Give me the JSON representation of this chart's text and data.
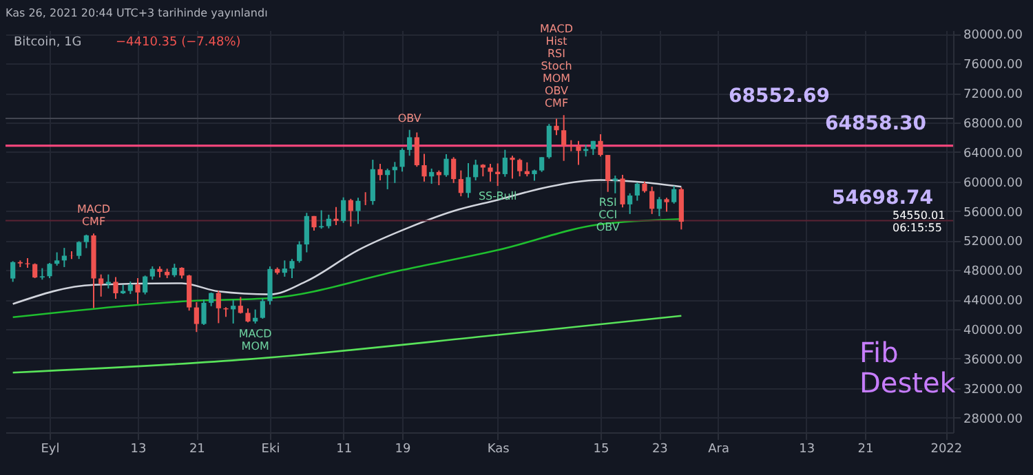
{
  "chart_data": {
    "type": "candlestick",
    "title": "Bitcoin, 1G",
    "subtitle": "−4410.35 (−7.48%)",
    "x": [
      "2021-08-27",
      "2021-08-28",
      "2021-08-29",
      "2021-08-30",
      "2021-08-31",
      "2021-09-01",
      "2021-09-02",
      "2021-09-03",
      "2021-09-04",
      "2021-09-05",
      "2021-09-06",
      "2021-09-07",
      "2021-09-08",
      "2021-09-09",
      "2021-09-10",
      "2021-09-11",
      "2021-09-12",
      "2021-09-13",
      "2021-09-14",
      "2021-09-15",
      "2021-09-16",
      "2021-09-17",
      "2021-09-18",
      "2021-09-19",
      "2021-09-20",
      "2021-09-21",
      "2021-09-22",
      "2021-09-23",
      "2021-09-24",
      "2021-09-25",
      "2021-09-26",
      "2021-09-27",
      "2021-09-28",
      "2021-09-29",
      "2021-09-30",
      "2021-10-01",
      "2021-10-02",
      "2021-10-03",
      "2021-10-04",
      "2021-10-05",
      "2021-10-06",
      "2021-10-07",
      "2021-10-08",
      "2021-10-09",
      "2021-10-10",
      "2021-10-11",
      "2021-10-12",
      "2021-10-13",
      "2021-10-14",
      "2021-10-15",
      "2021-10-16",
      "2021-10-17",
      "2021-10-18",
      "2021-10-19",
      "2021-10-20",
      "2021-10-21",
      "2021-10-22",
      "2021-10-23",
      "2021-10-24",
      "2021-10-25",
      "2021-10-26",
      "2021-10-27",
      "2021-10-28",
      "2021-10-29",
      "2021-10-30",
      "2021-10-31",
      "2021-11-01",
      "2021-11-02",
      "2021-11-03",
      "2021-11-04",
      "2021-11-05",
      "2021-11-06",
      "2021-11-07",
      "2021-11-08",
      "2021-11-09",
      "2021-11-10",
      "2021-11-11",
      "2021-11-12",
      "2021-11-13",
      "2021-11-14",
      "2021-11-15",
      "2021-11-16",
      "2021-11-17",
      "2021-11-18",
      "2021-11-19",
      "2021-11-20",
      "2021-11-21",
      "2021-11-22",
      "2021-11-23",
      "2021-11-24",
      "2021-11-25",
      "2021-11-26"
    ],
    "ohlc": [
      [
        46850,
        49200,
        46400,
        49070
      ],
      [
        49070,
        49300,
        48400,
        48900
      ],
      [
        48900,
        49600,
        48300,
        48800
      ],
      [
        48800,
        48900,
        46900,
        46990
      ],
      [
        46990,
        48250,
        46700,
        47150
      ],
      [
        47150,
        48950,
        46900,
        48850
      ],
      [
        48850,
        50400,
        48600,
        49300
      ],
      [
        49300,
        51000,
        48400,
        49940
      ],
      [
        49940,
        50550,
        49500,
        49920
      ],
      [
        49920,
        51900,
        49500,
        51790
      ],
      [
        51790,
        52800,
        50970,
        52700
      ],
      [
        52700,
        52950,
        42850,
        46860
      ],
      [
        46860,
        47400,
        44400,
        46090
      ],
      [
        46090,
        47400,
        45500,
        46400
      ],
      [
        46400,
        47050,
        44100,
        44850
      ],
      [
        44850,
        45990,
        44750,
        45170
      ],
      [
        45170,
        46450,
        44750,
        46030
      ],
      [
        46030,
        46900,
        43400,
        44960
      ],
      [
        44960,
        47250,
        44700,
        47130
      ],
      [
        47130,
        48500,
        46700,
        48150
      ],
      [
        48150,
        48500,
        47000,
        47760
      ],
      [
        47760,
        48180,
        46900,
        47300
      ],
      [
        47300,
        48850,
        47050,
        48310
      ],
      [
        48310,
        48370,
        46850,
        47260
      ],
      [
        47260,
        47350,
        42500,
        42930
      ],
      [
        42930,
        43650,
        39600,
        40690
      ],
      [
        40690,
        44000,
        40550,
        43560
      ],
      [
        43560,
        44950,
        43100,
        44880
      ],
      [
        44880,
        45200,
        40800,
        42810
      ],
      [
        42810,
        42950,
        41650,
        42670
      ],
      [
        42670,
        43950,
        40750,
        43160
      ],
      [
        43160,
        44350,
        42100,
        42190
      ],
      [
        42190,
        42800,
        40900,
        41030
      ],
      [
        41030,
        42650,
        40750,
        41520
      ],
      [
        41520,
        44150,
        41400,
        43790
      ],
      [
        43790,
        48500,
        43300,
        48140
      ],
      [
        48140,
        48350,
        47400,
        47630
      ],
      [
        47630,
        49300,
        47100,
        48200
      ],
      [
        48200,
        49500,
        46900,
        49220
      ],
      [
        49220,
        51900,
        49000,
        51470
      ],
      [
        51470,
        55750,
        50400,
        55320
      ],
      [
        55320,
        55330,
        53350,
        53790
      ],
      [
        53790,
        56100,
        53600,
        53950
      ],
      [
        53950,
        55500,
        53650,
        54950
      ],
      [
        54950,
        56550,
        54100,
        54660
      ],
      [
        54660,
        57850,
        54400,
        57470
      ],
      [
        57470,
        57650,
        53900,
        56000
      ],
      [
        56000,
        57800,
        54250,
        57370
      ],
      [
        57370,
        58550,
        56800,
        57350
      ],
      [
        57350,
        62950,
        56850,
        61670
      ],
      [
        61670,
        62400,
        60150,
        60880
      ],
      [
        60880,
        61750,
        58950,
        61530
      ],
      [
        61530,
        62650,
        59800,
        61990
      ],
      [
        61990,
        64500,
        61350,
        64280
      ],
      [
        64280,
        67000,
        63500,
        66000
      ],
      [
        66000,
        66650,
        62000,
        62210
      ],
      [
        62210,
        63750,
        60000,
        60690
      ],
      [
        60690,
        61750,
        59700,
        61290
      ],
      [
        61290,
        61500,
        59500,
        60860
      ],
      [
        60860,
        63700,
        60650,
        63080
      ],
      [
        63080,
        63300,
        59800,
        60330
      ],
      [
        60330,
        61500,
        58000,
        58450
      ],
      [
        58450,
        62500,
        57800,
        60590
      ],
      [
        60590,
        62950,
        60150,
        62270
      ],
      [
        62270,
        62350,
        60700,
        61890
      ],
      [
        61890,
        62400,
        60000,
        61320
      ],
      [
        61320,
        62450,
        59400,
        61000
      ],
      [
        61000,
        64300,
        60650,
        63230
      ],
      [
        63230,
        63500,
        60400,
        62930
      ],
      [
        62930,
        63100,
        60700,
        61400
      ],
      [
        61400,
        62600,
        60700,
        61000
      ],
      [
        61000,
        61600,
        60100,
        61500
      ],
      [
        61500,
        63300,
        61300,
        63300
      ],
      [
        63300,
        67800,
        63100,
        67550
      ],
      [
        67550,
        68500,
        66300,
        66950
      ],
      [
        66950,
        69000,
        62800,
        64880
      ],
      [
        64880,
        65600,
        64100,
        64800
      ],
      [
        64800,
        65500,
        62250,
        64150
      ],
      [
        64150,
        65000,
        63400,
        64400
      ],
      [
        64400,
        65500,
        63600,
        65500
      ],
      [
        65500,
        66400,
        63400,
        63600
      ],
      [
        63600,
        63600,
        58600,
        60100
      ],
      [
        60100,
        60800,
        58400,
        60400
      ],
      [
        60400,
        60900,
        56500,
        56900
      ],
      [
        56900,
        58400,
        55600,
        58100
      ],
      [
        58100,
        59850,
        57400,
        59700
      ],
      [
        59700,
        60000,
        58500,
        58700
      ],
      [
        58700,
        59300,
        55600,
        56300
      ],
      [
        56300,
        57900,
        55300,
        57600
      ],
      [
        57600,
        57800,
        55900,
        57200
      ],
      [
        57200,
        59400,
        57000,
        58960.36
      ],
      [
        58960.36,
        59200,
        53500,
        54550.01
      ]
    ],
    "series": [
      {
        "type": "line",
        "color": "#d1d4dc",
        "x": [
          "2021-08-27",
          "2021-09-07",
          "2021-09-19",
          "2021-09-24",
          "2021-10-01",
          "2021-10-06",
          "2021-10-13",
          "2021-10-20",
          "2021-10-26",
          "2021-11-01",
          "2021-11-08",
          "2021-11-15",
          "2021-11-26"
        ],
        "values": [
          43400,
          46000,
          46200,
          45100,
          44700,
          46500,
          50700,
          53800,
          56000,
          57500,
          59300,
          60200,
          59300
        ]
      },
      {
        "type": "line",
        "color": "#1fbf2f",
        "x": [
          "2021-08-27",
          "2021-09-12",
          "2021-09-20",
          "2021-10-01",
          "2021-10-19",
          "2021-11-01",
          "2021-11-15",
          "2021-11-26"
        ],
        "values": [
          41600,
          43200,
          43800,
          44200,
          48000,
          50700,
          54200,
          54900
        ]
      },
      {
        "type": "line",
        "color": "#59e35a",
        "x": [
          "2021-08-27",
          "2021-09-28",
          "2021-11-01",
          "2021-11-26"
        ],
        "values": [
          34100,
          35900,
          39200,
          41800
        ]
      }
    ],
    "ref_lines": [
      {
        "axis": "y",
        "value": 68552.69,
        "label": "68552.69",
        "color": "#434651"
      },
      {
        "axis": "y",
        "value": 64858.3,
        "label": "64858.30",
        "color": "#f0457a"
      },
      {
        "axis": "y",
        "value": 54698.74,
        "label": "54698.74",
        "color": "#5b2333"
      }
    ],
    "annotations": [
      "Kas 26, 2021 20:44 UTC+3 tarihinde yayınlandı",
      "54550.01",
      "06:15:55",
      "Fib Destek",
      {
        "text": "MACD\nCMF",
        "x": "2021-09-07",
        "y": 52950
      },
      {
        "text": "OBV",
        "x": "2021-10-20",
        "y": 67000
      },
      {
        "text": "MACD\nMOM",
        "x": "2021-09-29",
        "y": 40750
      },
      {
        "text": "MACD\nHist\nRSI\nStoch\nMOM\nOBV\nCMF",
        "x": "2021-11-09",
        "y": 69000
      },
      {
        "text": "RSI\nCCI\nOBV",
        "x": "2021-11-16",
        "y": 58600
      },
      {
        "text": "SS-Bull",
        "x": "2021-11-01",
        "y": 59400
      }
    ],
    "xlim": [
      "2021-08-26",
      "2022-01-02"
    ],
    "xticks": [
      {
        "value": "2021-09-01",
        "label": "Eyl"
      },
      {
        "value": "2021-09-13",
        "label": "13"
      },
      {
        "value": "2021-09-21",
        "label": "21"
      },
      {
        "value": "2021-10-01",
        "label": "Eki"
      },
      {
        "value": "2021-10-11",
        "label": "11"
      },
      {
        "value": "2021-10-19",
        "label": "19"
      },
      {
        "value": "2021-11-01",
        "label": "Kas"
      },
      {
        "value": "2021-11-15",
        "label": "15"
      },
      {
        "value": "2021-11-23",
        "label": "23"
      },
      {
        "value": "2021-12-01",
        "label": "Ara"
      },
      {
        "value": "2021-12-13",
        "label": "13"
      },
      {
        "value": "2021-12-21",
        "label": "21"
      },
      {
        "value": "2022-01-01",
        "label": "2022"
      }
    ],
    "ylim": [
      26000,
      80500
    ],
    "yticks": [
      {
        "value": 28000,
        "label": "28000.00"
      },
      {
        "value": 32000,
        "label": "32000.00"
      },
      {
        "value": 36000,
        "label": "36000.00"
      },
      {
        "value": 40000,
        "label": "40000.00"
      },
      {
        "value": 44000,
        "label": "44000.00"
      },
      {
        "value": 48000,
        "label": "48000.00"
      },
      {
        "value": 52000,
        "label": "52000.00"
      },
      {
        "value": 56000,
        "label": "56000.00"
      },
      {
        "value": 60000,
        "label": "60000.00"
      },
      {
        "value": 64000,
        "label": "64000.00"
      },
      {
        "value": 68000,
        "label": "68000.00"
      },
      {
        "value": 72000,
        "label": "72000.00"
      },
      {
        "value": 76000,
        "label": "76000.00"
      },
      {
        "value": 80000,
        "label": "80000.00"
      }
    ],
    "grid": true
  }
}
